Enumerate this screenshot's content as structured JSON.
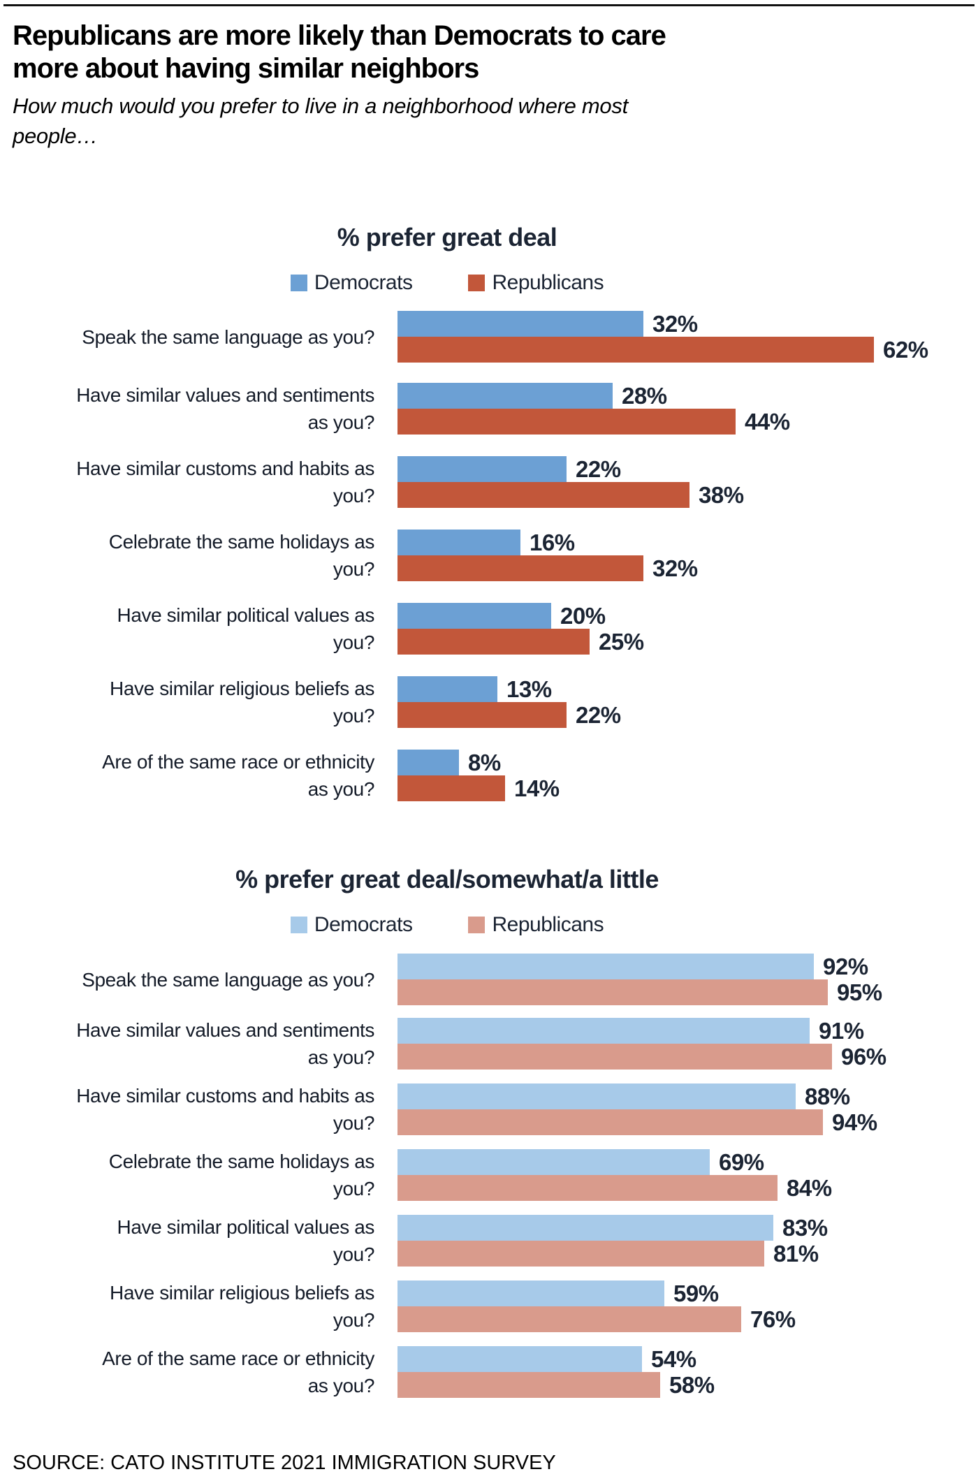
{
  "header": {
    "title": "Republicans are more likely than Democrats to care\nmore about having similar neighbors",
    "subtitle": "How much would you prefer to live in a neighborhood where most\npeople…"
  },
  "footer": {
    "source": "SOURCE: CATO INSTITUTE 2021 IMMIGRATION SURVEY"
  },
  "colors": {
    "democrat_strong": "#6CA0D4",
    "republican_strong": "#C2573A",
    "democrat_light": "#A7CAE9",
    "republican_light": "#D99B8C",
    "chart_text": "#1B2433",
    "body_text": "#000000",
    "rule": "#111111"
  },
  "chart_data": [
    {
      "type": "bar",
      "orientation": "horizontal",
      "title": "% prefer great deal",
      "legend_position": "top",
      "grid": false,
      "xlim": [
        0,
        62
      ],
      "value_suffix": "%",
      "categories": [
        "Speak the same language as you?",
        "Have similar values and sentiments\nas you?",
        "Have similar customs and habits as\nyou?",
        "Celebrate the same holidays as\nyou?",
        "Have similar political values as\nyou?",
        "Have similar religious beliefs as\nyou?",
        "Are of the same race or ethnicity\nas you?"
      ],
      "series": [
        {
          "name": "Democrats",
          "color": "#6CA0D4",
          "values": [
            32,
            28,
            22,
            16,
            20,
            13,
            8
          ]
        },
        {
          "name": "Republicans",
          "color": "#C2573A",
          "values": [
            62,
            44,
            38,
            32,
            25,
            22,
            14
          ]
        }
      ]
    },
    {
      "type": "bar",
      "orientation": "horizontal",
      "title": "% prefer great deal/somewhat/a little",
      "legend_position": "top",
      "grid": false,
      "xlim": [
        0,
        96
      ],
      "value_suffix": "%",
      "categories": [
        "Speak the same language as you?",
        "Have similar values and sentiments\nas you?",
        "Have similar customs and habits as\nyou?",
        "Celebrate the same holidays as\nyou?",
        "Have similar political values as\nyou?",
        "Have similar religious beliefs as\nyou?",
        "Are of the same race or ethnicity\nas you?"
      ],
      "series": [
        {
          "name": "Democrats",
          "color": "#A7CAE9",
          "values": [
            92,
            91,
            88,
            69,
            83,
            59,
            54
          ]
        },
        {
          "name": "Republicans",
          "color": "#D99B8C",
          "values": [
            95,
            96,
            94,
            84,
            81,
            76,
            58
          ]
        }
      ]
    }
  ]
}
